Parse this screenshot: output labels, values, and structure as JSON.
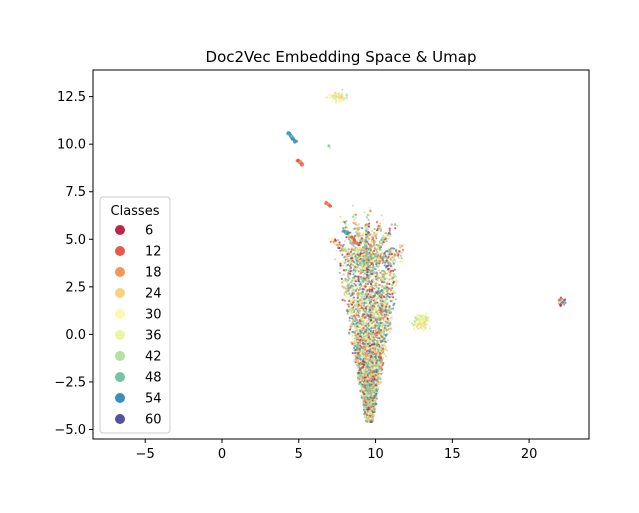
{
  "chart_data": {
    "type": "scatter",
    "title": "Doc2Vec Embedding Space & Umap",
    "xlabel": "",
    "ylabel": "",
    "xlim": [
      -8.4,
      23.9
    ],
    "ylim": [
      -5.5,
      13.9
    ],
    "xticks": [
      -5,
      0,
      5,
      10,
      15,
      20
    ],
    "xtick_labels": [
      "−5",
      "0",
      "5",
      "10",
      "15",
      "20"
    ],
    "yticks": [
      -5.0,
      -2.5,
      0.0,
      2.5,
      5.0,
      7.5,
      10.0,
      12.5
    ],
    "ytick_labels": [
      "−5.0",
      "−2.5",
      "0.0",
      "2.5",
      "5.0",
      "7.5",
      "10.0",
      "12.5"
    ],
    "grid": false,
    "legend": {
      "title": "Classes",
      "placement": "center-left",
      "entries": [
        {
          "label": "6",
          "color": "#be254b"
        },
        {
          "label": "12",
          "color": "#e75a47"
        },
        {
          "label": "18",
          "color": "#f99555"
        },
        {
          "label": "24",
          "color": "#fdd07e"
        },
        {
          "label": "30",
          "color": "#fef7ad"
        },
        {
          "label": "36",
          "color": "#eaf79e"
        },
        {
          "label": "42",
          "color": "#b8e0a1"
        },
        {
          "label": "48",
          "color": "#72c6a5"
        },
        {
          "label": "54",
          "color": "#3a8fbf"
        },
        {
          "label": "60",
          "color": "#5452a0"
        }
      ]
    },
    "clusters": [
      {
        "name": "main-body",
        "shape": "funnel",
        "x_center": 9.6,
        "y_top": 4.3,
        "y_bottom": -4.6,
        "half_width_top": 2.4,
        "half_width_bottom": 0.25,
        "n_points": 3800,
        "palette": "mixed"
      },
      {
        "name": "crown-leaves",
        "shape": "fan",
        "x_center": 9.3,
        "y_base": 3.6,
        "y_tip": 6.8,
        "n_points": 900,
        "palette": "mixed"
      },
      {
        "name": "right-blob",
        "shape": "blob",
        "x_center": 13.0,
        "y_center": 0.65,
        "x_spread": 0.4,
        "y_spread": 0.35,
        "n_points": 160,
        "palette": "yellowgreen"
      },
      {
        "name": "far-right-tail",
        "shape": "blob",
        "x_center": 22.1,
        "y_center": 1.7,
        "x_spread": 0.25,
        "y_spread": 0.15,
        "n_points": 50,
        "palette": "yellowred"
      },
      {
        "name": "top-cluster",
        "shape": "blob",
        "x_center": 7.6,
        "y_center": 12.5,
        "x_spread": 0.45,
        "y_spread": 0.2,
        "n_points": 80,
        "palette": "yellowgreen"
      },
      {
        "name": "blue-streak",
        "shape": "line",
        "x_start": 4.3,
        "y_start": 10.6,
        "x_end": 4.8,
        "y_end": 10.1,
        "n_points": 40,
        "palette": "blue"
      },
      {
        "name": "red-streak",
        "shape": "line",
        "x_start": 4.9,
        "y_start": 9.2,
        "x_end": 5.3,
        "y_end": 8.9,
        "n_points": 30,
        "palette": "red"
      },
      {
        "name": "small-red-1",
        "shape": "line",
        "x_start": 6.8,
        "y_start": 6.9,
        "x_end": 7.1,
        "y_end": 6.7,
        "n_points": 15,
        "palette": "red"
      },
      {
        "name": "small-blue-1",
        "shape": "line",
        "x_start": 7.9,
        "y_start": 5.45,
        "x_end": 8.2,
        "y_end": 5.3,
        "n_points": 15,
        "palette": "blue"
      },
      {
        "name": "small-red-2",
        "shape": "line",
        "x_start": 8.4,
        "y_start": 5.2,
        "x_end": 8.8,
        "y_end": 4.8,
        "n_points": 15,
        "palette": "red"
      },
      {
        "name": "tiny-green",
        "shape": "blob",
        "x_center": 7.0,
        "y_center": 9.9,
        "x_spread": 0.05,
        "y_spread": 0.1,
        "n_points": 6,
        "palette": "green"
      }
    ]
  }
}
